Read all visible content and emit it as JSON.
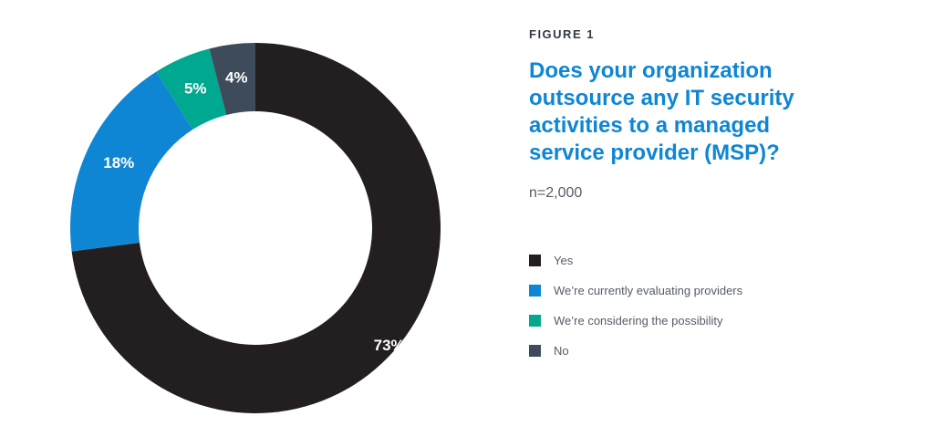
{
  "figure_label": "FIGURE 1",
  "title": "Does your organization outsource any IT security activities to a managed service provider (MSP)?",
  "subtitle": "n=2,000",
  "colors": {
    "yes": "#231f20",
    "evaluating": "#0e86d4",
    "considering": "#00a88f",
    "no": "#3d4b5a",
    "title": "#0e86d4"
  },
  "chart_data": {
    "type": "pie",
    "donut": true,
    "categories": [
      "Yes",
      "We’re currently evaluating providers",
      "We’re considering the possibility",
      "No"
    ],
    "values": [
      73,
      18,
      5,
      4
    ],
    "value_labels": [
      "73%",
      "18%",
      "5%",
      "4%"
    ],
    "colors": [
      "#231f20",
      "#0e86d4",
      "#00a88f",
      "#3d4b5a"
    ],
    "start": "top",
    "direction": "counterclockwise-from-yes",
    "title": "Does your organization outsource any IT security activities to a managed service provider (MSP)?",
    "legend_position": "right"
  }
}
